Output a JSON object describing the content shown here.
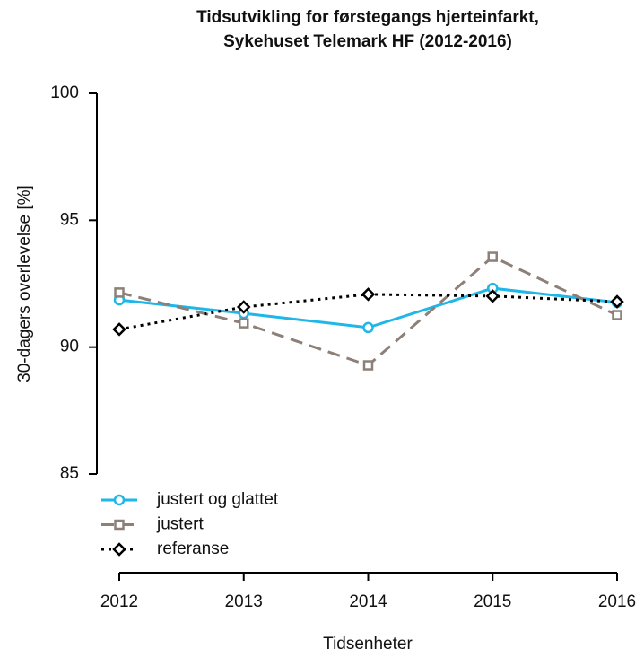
{
  "chart_data": {
    "type": "line",
    "title": [
      "Tidsutvikling for førstegangs hjerteinfarkt,",
      "Sykehuset Telemark HF (2012-2016)"
    ],
    "x_label": "Tidsenheter",
    "y_label": "30-dagers overlevelse [%]",
    "x": [
      2012,
      2013,
      2014,
      2015,
      2016
    ],
    "xlim": [
      2012,
      2016
    ],
    "xticks": [
      2012,
      2013,
      2014,
      2015,
      2016
    ],
    "ylim": [
      85,
      100
    ],
    "yticks": [
      85,
      90,
      95,
      100
    ],
    "legend": "bottom-left",
    "series": [
      {
        "name": "justert og glattet",
        "color": "#1fb6e8",
        "marker": "circle",
        "linestyle": "solid",
        "values": [
          91.86,
          91.33,
          90.77,
          92.32,
          91.76
        ]
      },
      {
        "name": "justert",
        "color": "#8c8079",
        "marker": "square",
        "linestyle": "dashed",
        "values": [
          92.15,
          90.94,
          89.28,
          93.56,
          91.26
        ]
      },
      {
        "name": "referanse",
        "color": "#000000",
        "marker": "diamond",
        "linestyle": "dotted",
        "values": [
          90.7,
          91.58,
          92.08,
          92.01,
          91.79
        ]
      }
    ]
  }
}
